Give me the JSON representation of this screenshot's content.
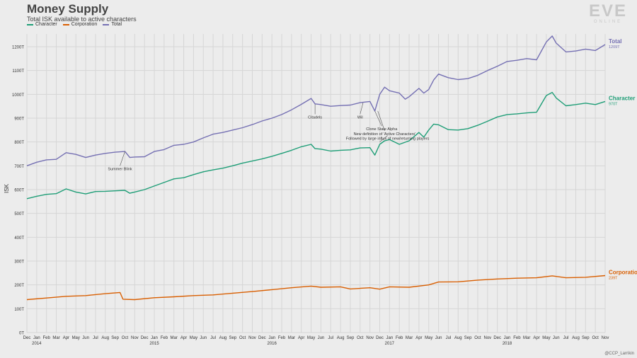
{
  "header": {
    "title": "Money Supply",
    "subtitle": "Total ISK available to active characters"
  },
  "logo": {
    "main": "EVE",
    "sub": "ONLINE"
  },
  "credit": "@CCP_Larrikin",
  "colors": {
    "character": "#1f9e77",
    "corporation": "#d95f02",
    "total": "#7570b3"
  },
  "chart_data": {
    "type": "line",
    "title": "Money Supply",
    "subtitle": "Total ISK available to active characters",
    "ylabel": "ISK",
    "ylim": [
      0,
      1250
    ],
    "y_ticks": [
      "0T",
      "100T",
      "200T",
      "300T",
      "400T",
      "500T",
      "600T",
      "700T",
      "800T",
      "900T",
      "1000T",
      "1100T",
      "1200T"
    ],
    "x_ticks": [
      "Dec",
      "Jan",
      "Feb",
      "Mar",
      "Apr",
      "May",
      "Jun",
      "Jul",
      "Aug",
      "Sep",
      "Oct",
      "Nov",
      "Dec",
      "Jan",
      "Feb",
      "Mar",
      "Apr",
      "May",
      "Jun",
      "Jul",
      "Aug",
      "Sep",
      "Oct",
      "Nov",
      "Dec",
      "Jan",
      "Feb",
      "Mar",
      "Apr",
      "May",
      "Jun",
      "Jul",
      "Aug",
      "Sep",
      "Oct",
      "Nov",
      "Dec",
      "Jan",
      "Feb",
      "Mar",
      "Apr",
      "May",
      "Jun",
      "Jul",
      "Aug",
      "Sep",
      "Oct",
      "Nov",
      "Dec",
      "Jan",
      "Feb",
      "Mar",
      "Apr",
      "May",
      "Jun",
      "Jul",
      "Aug",
      "Sep",
      "Oct",
      "Nov"
    ],
    "year_labels": [
      {
        "month_index": 1,
        "label": "2014"
      },
      {
        "month_index": 13,
        "label": "2015"
      },
      {
        "month_index": 25,
        "label": "2016"
      },
      {
        "month_index": 37,
        "label": "2017"
      },
      {
        "month_index": 49,
        "label": "2018"
      }
    ],
    "grid": true,
    "legend_position": "top-left",
    "series": [
      {
        "key": "total",
        "name": "Total",
        "end_label": "Total",
        "end_value": "1209T",
        "values": [
          [
            0,
            700
          ],
          [
            1,
            715
          ],
          [
            2,
            725
          ],
          [
            3,
            727
          ],
          [
            4,
            755
          ],
          [
            5,
            748
          ],
          [
            6,
            735
          ],
          [
            7,
            745
          ],
          [
            8,
            752
          ],
          [
            9,
            757
          ],
          [
            10,
            760
          ],
          [
            10.5,
            735
          ],
          [
            11,
            737
          ],
          [
            12,
            738
          ],
          [
            13,
            760
          ],
          [
            14,
            768
          ],
          [
            15,
            786
          ],
          [
            16,
            790
          ],
          [
            17,
            800
          ],
          [
            18,
            817
          ],
          [
            19,
            833
          ],
          [
            20,
            840
          ],
          [
            21,
            850
          ],
          [
            22,
            860
          ],
          [
            23,
            873
          ],
          [
            24,
            888
          ],
          [
            25,
            900
          ],
          [
            26,
            915
          ],
          [
            27,
            935
          ],
          [
            28,
            958
          ],
          [
            29,
            983
          ],
          [
            29.4,
            960
          ],
          [
            30,
            957
          ],
          [
            31,
            950
          ],
          [
            32,
            953
          ],
          [
            33,
            955
          ],
          [
            34,
            965
          ],
          [
            35,
            970
          ],
          [
            35.5,
            930
          ],
          [
            36,
            1000
          ],
          [
            36.5,
            1030
          ],
          [
            37,
            1015
          ],
          [
            38,
            1005
          ],
          [
            38.6,
            980
          ],
          [
            39,
            990
          ],
          [
            40,
            1025
          ],
          [
            40.5,
            1005
          ],
          [
            41,
            1020
          ],
          [
            41.5,
            1060
          ],
          [
            42,
            1085
          ],
          [
            43,
            1070
          ],
          [
            44,
            1062
          ],
          [
            45,
            1066
          ],
          [
            46,
            1080
          ],
          [
            47,
            1100
          ],
          [
            48,
            1118
          ],
          [
            49,
            1138
          ],
          [
            50,
            1143
          ],
          [
            51,
            1150
          ],
          [
            52,
            1145
          ],
          [
            53,
            1220
          ],
          [
            53.6,
            1245
          ],
          [
            54,
            1215
          ],
          [
            55,
            1178
          ],
          [
            56,
            1182
          ],
          [
            57,
            1190
          ],
          [
            58,
            1184
          ],
          [
            59,
            1209
          ]
        ]
      },
      {
        "key": "character",
        "name": "Character",
        "end_label": "Character",
        "end_value": "970T",
        "values": [
          [
            0,
            562
          ],
          [
            1,
            572
          ],
          [
            2,
            580
          ],
          [
            3,
            583
          ],
          [
            4,
            603
          ],
          [
            5,
            590
          ],
          [
            6,
            582
          ],
          [
            7,
            592
          ],
          [
            8,
            593
          ],
          [
            9,
            595
          ],
          [
            10,
            597
          ],
          [
            10.5,
            585
          ],
          [
            11,
            590
          ],
          [
            12,
            600
          ],
          [
            13,
            615
          ],
          [
            14,
            630
          ],
          [
            15,
            645
          ],
          [
            16,
            650
          ],
          [
            17,
            663
          ],
          [
            18,
            675
          ],
          [
            19,
            683
          ],
          [
            20,
            690
          ],
          [
            21,
            700
          ],
          [
            22,
            711
          ],
          [
            23,
            720
          ],
          [
            24,
            729
          ],
          [
            25,
            740
          ],
          [
            26,
            752
          ],
          [
            27,
            765
          ],
          [
            28,
            780
          ],
          [
            29,
            790
          ],
          [
            29.4,
            772
          ],
          [
            30,
            770
          ],
          [
            31,
            762
          ],
          [
            32,
            765
          ],
          [
            33,
            767
          ],
          [
            34,
            775
          ],
          [
            35,
            776
          ],
          [
            35.5,
            745
          ],
          [
            36,
            790
          ],
          [
            36.5,
            805
          ],
          [
            37,
            810
          ],
          [
            38,
            790
          ],
          [
            39,
            805
          ],
          [
            40,
            840
          ],
          [
            40.5,
            820
          ],
          [
            41,
            850
          ],
          [
            41.5,
            875
          ],
          [
            42,
            872
          ],
          [
            43,
            852
          ],
          [
            44,
            850
          ],
          [
            45,
            856
          ],
          [
            46,
            870
          ],
          [
            47,
            887
          ],
          [
            48,
            905
          ],
          [
            49,
            915
          ],
          [
            50,
            918
          ],
          [
            51,
            922
          ],
          [
            52,
            925
          ],
          [
            53,
            995
          ],
          [
            53.6,
            1008
          ],
          [
            54,
            985
          ],
          [
            55,
            952
          ],
          [
            56,
            957
          ],
          [
            57,
            963
          ],
          [
            58,
            957
          ],
          [
            59,
            970
          ]
        ]
      },
      {
        "key": "corporation",
        "name": "Corporation",
        "end_label": "Corporation",
        "end_value": "239T",
        "values": [
          [
            0,
            138
          ],
          [
            2,
            145
          ],
          [
            4,
            152
          ],
          [
            6,
            155
          ],
          [
            8,
            163
          ],
          [
            9.5,
            168
          ],
          [
            9.8,
            140
          ],
          [
            11,
            138
          ],
          [
            13,
            146
          ],
          [
            15,
            150
          ],
          [
            17,
            155
          ],
          [
            19,
            158
          ],
          [
            21,
            165
          ],
          [
            23,
            172
          ],
          [
            25,
            180
          ],
          [
            27,
            188
          ],
          [
            29,
            195
          ],
          [
            30,
            190
          ],
          [
            32,
            192
          ],
          [
            33,
            183
          ],
          [
            35,
            188
          ],
          [
            36,
            182
          ],
          [
            37,
            192
          ],
          [
            39,
            190
          ],
          [
            41,
            200
          ],
          [
            42,
            212
          ],
          [
            44,
            213
          ],
          [
            46,
            220
          ],
          [
            48,
            225
          ],
          [
            50,
            228
          ],
          [
            52,
            230
          ],
          [
            53.6,
            238
          ],
          [
            55,
            230
          ],
          [
            57,
            232
          ],
          [
            59,
            239
          ]
        ]
      }
    ],
    "annotations": [
      {
        "text": "Citadels",
        "point": [
          29.4,
          958
        ],
        "label_at": [
          29.4,
          905
        ]
      },
      {
        "text": "WiI",
        "point": [
          34.3,
          965
        ],
        "label_at": [
          34,
          905
        ]
      },
      {
        "text": "Summer Blink",
        "point": [
          10,
          760
        ],
        "label_at": [
          9.5,
          688
        ]
      },
      {
        "text": "Clone State Alpha",
        "point": [
          35.5,
          930
        ],
        "label_at": [
          36.2,
          855
        ]
      },
      {
        "text": "New definition of 'Active Characters'",
        "point": [
          35.8,
          930
        ],
        "label_at": [
          36.5,
          835
        ]
      },
      {
        "text": "Followed by large influx of new/returning players",
        "point": [
          36,
          800
        ],
        "label_at": [
          36.8,
          815
        ]
      }
    ]
  }
}
